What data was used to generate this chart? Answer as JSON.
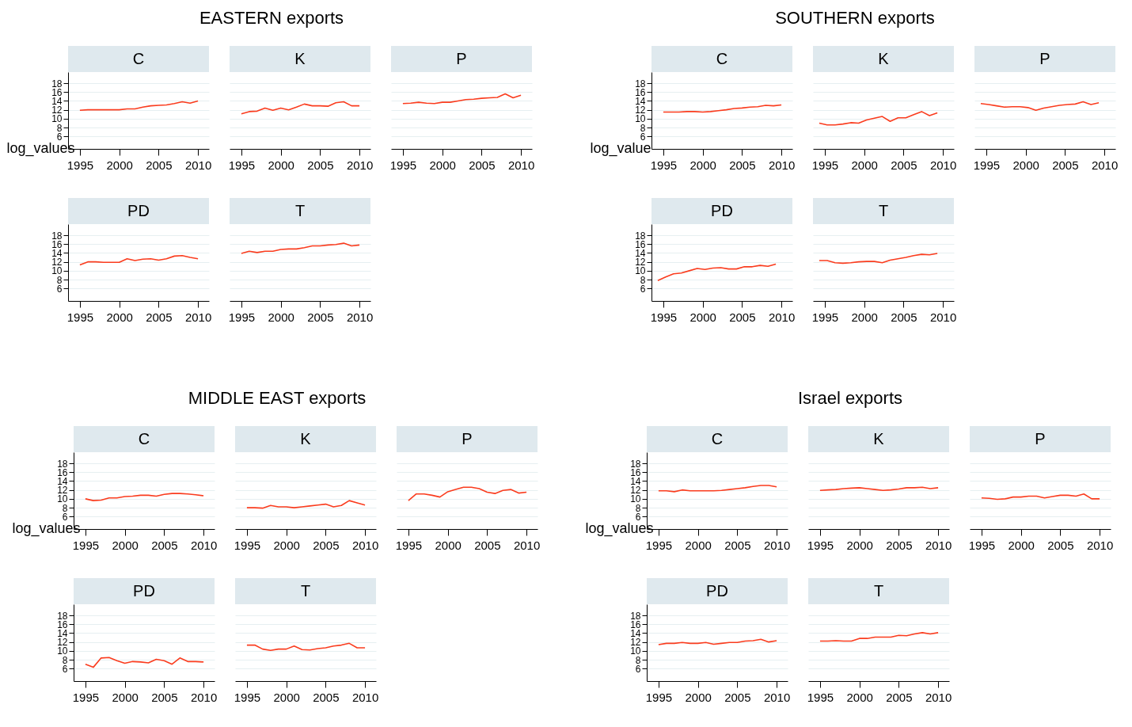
{
  "chart_data": [
    {
      "type": "line",
      "subtitle": "C",
      "ylabel": "log_values",
      "x": [
        1995,
        1996,
        1997,
        1998,
        1999,
        2000,
        2001,
        2002,
        2003,
        2004,
        2005,
        2006,
        2007,
        2008,
        2009,
        2010
      ],
      "values": [
        11.9,
        12.0,
        12.0,
        12.0,
        12.0,
        12.0,
        12.2,
        12.2,
        12.6,
        12.9,
        13.0,
        13.1,
        13.4,
        13.8,
        13.5,
        14.0
      ],
      "color": "#fa3c1e",
      "xlim": [
        1993.5,
        2011.4
      ],
      "ylim": [
        3.2,
        20.5
      ],
      "xticks": [
        1995,
        2000,
        2005,
        2010
      ],
      "yticks": [
        6,
        8,
        10,
        12,
        14,
        16,
        18
      ],
      "grid": "y"
    },
    {
      "type": "line",
      "title": "EASTERN exports",
      "subtitle": "K",
      "x": [
        1995,
        1996,
        1997,
        1998,
        1999,
        2000,
        2001,
        2002,
        2003,
        2004,
        2005,
        2006,
        2007,
        2008,
        2009,
        2010
      ],
      "values": [
        11.1,
        11.6,
        11.7,
        12.4,
        11.9,
        12.4,
        12.0,
        12.6,
        13.3,
        12.9,
        12.9,
        12.8,
        13.6,
        13.8,
        12.9,
        12.9
      ],
      "color": "#fa3c1e",
      "xlim": [
        1993.5,
        2011.4
      ],
      "xticks": [
        1995,
        2000,
        2005,
        2010
      ],
      "yticks": [
        6,
        8,
        10,
        12,
        14,
        16,
        18
      ],
      "grid": "y",
      "tick_labels": "x"
    },
    {
      "type": "line",
      "subtitle": "P",
      "x": [
        1995,
        1996,
        1997,
        1998,
        1999,
        2000,
        2001,
        2002,
        2003,
        2004,
        2005,
        2006,
        2007,
        2008,
        2009,
        2010
      ],
      "values": [
        13.4,
        13.5,
        13.7,
        13.5,
        13.4,
        13.7,
        13.7,
        14.0,
        14.3,
        14.4,
        14.6,
        14.7,
        14.8,
        15.6,
        14.7,
        15.3
      ],
      "color": "#fa3c1e",
      "xlim": [
        1993.5,
        2011.4
      ],
      "xticks": [
        1995,
        2000,
        2005,
        2010
      ],
      "yticks": [
        6,
        8,
        10,
        12,
        14,
        16,
        18
      ],
      "grid": "y",
      "tick_labels": "x"
    },
    {
      "type": "line",
      "subtitle": "PD",
      "x": [
        1995,
        1996,
        1997,
        1998,
        1999,
        2000,
        2001,
        2002,
        2003,
        2004,
        2005,
        2006,
        2007,
        2008,
        2009,
        2010
      ],
      "values": [
        11.3,
        12.0,
        12.0,
        11.9,
        11.9,
        11.9,
        12.7,
        12.3,
        12.6,
        12.7,
        12.4,
        12.7,
        13.3,
        13.4,
        13.0,
        12.7
      ],
      "color": "#fa3c1e",
      "xlim": [
        1993.5,
        2011.4
      ],
      "ylim": [
        3.2,
        20.5
      ],
      "xticks": [
        1995,
        2000,
        2005,
        2010
      ],
      "yticks": [
        6,
        8,
        10,
        12,
        14,
        16,
        18
      ],
      "grid": "y"
    },
    {
      "type": "line",
      "subtitle": "T",
      "x": [
        1995,
        1996,
        1997,
        1998,
        1999,
        2000,
        2001,
        2002,
        2003,
        2004,
        2005,
        2006,
        2007,
        2008,
        2009,
        2010
      ],
      "values": [
        13.9,
        14.4,
        14.1,
        14.4,
        14.4,
        14.8,
        14.9,
        14.9,
        15.2,
        15.6,
        15.6,
        15.8,
        15.9,
        16.2,
        15.6,
        15.8
      ],
      "color": "#fa3c1e",
      "xlim": [
        1993.5,
        2011.4
      ],
      "xticks": [
        1995,
        2000,
        2005,
        2010
      ],
      "yticks": [
        6,
        8,
        10,
        12,
        14,
        16,
        18
      ],
      "grid": "y",
      "tick_labels": "x"
    },
    {
      "type": "line",
      "subtitle": "C",
      "ylabel": "log_value",
      "x": [
        1995,
        1996,
        1997,
        1998,
        1999,
        2000,
        2001,
        2002,
        2003,
        2004,
        2005,
        2006,
        2007,
        2008,
        2009,
        2010
      ],
      "values": [
        11.5,
        11.5,
        11.5,
        11.6,
        11.6,
        11.5,
        11.6,
        11.8,
        12.0,
        12.3,
        12.4,
        12.6,
        12.7,
        13.0,
        12.9,
        13.1
      ],
      "color": "#fa3c1e",
      "xlim": [
        1993.5,
        2011.4
      ],
      "ylim": [
        3.2,
        20.5
      ],
      "xticks": [
        1995,
        2000,
        2005,
        2010
      ],
      "yticks": [
        6,
        8,
        10,
        12,
        14,
        16,
        18
      ],
      "grid": "y"
    },
    {
      "type": "line",
      "title": "SOUTHERN exports",
      "subtitle": "K",
      "x": [
        1994.3,
        1995.3,
        1996.3,
        1997.3,
        1998.3,
        1999.3,
        2000.3,
        2001.3,
        2002.3,
        2003.3,
        2004.3,
        2005.3,
        2006.3,
        2007.3,
        2008.3,
        2009.3
      ],
      "values": [
        9.0,
        8.6,
        8.6,
        8.8,
        9.1,
        9.0,
        9.7,
        10.1,
        10.5,
        9.4,
        10.2,
        10.2,
        10.9,
        11.6,
        10.7,
        11.3
      ],
      "color": "#fa3c1e",
      "xlim": [
        1993.5,
        2011.4
      ],
      "xticks": [
        1995,
        2000,
        2005,
        2010
      ],
      "yticks": [
        6,
        8,
        10,
        12,
        14,
        16,
        18
      ],
      "grid": "y",
      "tick_labels": "x"
    },
    {
      "type": "line",
      "subtitle": "P",
      "x": [
        1994.3,
        1995.3,
        1996.3,
        1997.3,
        1998.3,
        1999.3,
        2000.3,
        2001.3,
        2002.3,
        2003.3,
        2004.3,
        2005.3,
        2006.3,
        2007.3,
        2008.3,
        2009.3
      ],
      "values": [
        13.4,
        13.2,
        12.9,
        12.6,
        12.7,
        12.7,
        12.5,
        11.9,
        12.4,
        12.7,
        13.0,
        13.2,
        13.3,
        13.8,
        13.2,
        13.6
      ],
      "color": "#fa3c1e",
      "xlim": [
        1993.5,
        2011.4
      ],
      "xticks": [
        1995,
        2000,
        2005,
        2010
      ],
      "yticks": [
        6,
        8,
        10,
        12,
        14,
        16,
        18
      ],
      "grid": "y",
      "tick_labels": "x"
    },
    {
      "type": "line",
      "subtitle": "PD",
      "x": [
        1994.3,
        1995.3,
        1996.3,
        1997.3,
        1998.3,
        1999.3,
        2000.3,
        2001.3,
        2002.3,
        2003.3,
        2004.3,
        2005.3,
        2006.3,
        2007.3,
        2008.3,
        2009.3
      ],
      "values": [
        7.8,
        8.6,
        9.3,
        9.5,
        10.0,
        10.5,
        10.3,
        10.6,
        10.7,
        10.4,
        10.4,
        10.9,
        10.9,
        11.2,
        11.0,
        11.5
      ],
      "color": "#fa3c1e",
      "xlim": [
        1993.5,
        2011.4
      ],
      "ylim": [
        3.2,
        20.5
      ],
      "xticks": [
        1995,
        2000,
        2005,
        2010
      ],
      "yticks": [
        6,
        8,
        10,
        12,
        14,
        16,
        18
      ],
      "grid": "y"
    },
    {
      "type": "line",
      "subtitle": "T",
      "x": [
        1994.3,
        1995.3,
        1996.3,
        1997.3,
        1998.3,
        1999.3,
        2000.3,
        2001.3,
        2002.3,
        2003.3,
        2004.3,
        2005.3,
        2006.3,
        2007.3,
        2008.3,
        2009.3
      ],
      "values": [
        12.3,
        12.3,
        11.8,
        11.7,
        11.8,
        12.0,
        12.1,
        12.1,
        11.8,
        12.4,
        12.7,
        13.0,
        13.4,
        13.7,
        13.6,
        13.9
      ],
      "color": "#fa3c1e",
      "xlim": [
        1993.5,
        2011.4
      ],
      "xticks": [
        1995,
        2000,
        2005,
        2010
      ],
      "yticks": [
        6,
        8,
        10,
        12,
        14,
        16,
        18
      ],
      "grid": "y",
      "tick_labels": "x"
    },
    {
      "type": "line",
      "subtitle": "C",
      "ylabel": "log_values",
      "x": [
        1995,
        1996,
        1997,
        1998,
        1999,
        2000,
        2001,
        2002,
        2003,
        2004,
        2005,
        2006,
        2007,
        2008,
        2009,
        2010
      ],
      "values": [
        10.0,
        9.6,
        9.7,
        10.2,
        10.2,
        10.5,
        10.6,
        10.8,
        10.8,
        10.6,
        11.0,
        11.2,
        11.2,
        11.1,
        10.9,
        10.7
      ],
      "color": "#fa3c1e",
      "xlim": [
        1993.5,
        2011.4
      ],
      "ylim": [
        3.2,
        20.5
      ],
      "xticks": [
        1995,
        2000,
        2005,
        2010
      ],
      "yticks": [
        6,
        8,
        10,
        12,
        14,
        16,
        18
      ],
      "grid": "y"
    },
    {
      "type": "line",
      "title": "MIDDLE EAST exports",
      "subtitle": "K",
      "x": [
        1995,
        1996,
        1997,
        1998,
        1999,
        2000,
        2001,
        2002,
        2003,
        2004,
        2005,
        2006,
        2007,
        2008,
        2009,
        2010
      ],
      "values": [
        8.0,
        8.0,
        7.9,
        8.5,
        8.2,
        8.2,
        8.0,
        8.2,
        8.4,
        8.6,
        8.8,
        8.2,
        8.5,
        9.6,
        9.1,
        8.6
      ],
      "color": "#fa3c1e",
      "xlim": [
        1993.5,
        2011.4
      ],
      "xticks": [
        1995,
        2000,
        2005,
        2010
      ],
      "yticks": [
        6,
        8,
        10,
        12,
        14,
        16,
        18
      ],
      "grid": "y",
      "tick_labels": "x"
    },
    {
      "type": "line",
      "subtitle": "P",
      "x": [
        1995,
        1996,
        1997,
        1998,
        1999,
        2000,
        2001,
        2002,
        2003,
        2004,
        2005,
        2006,
        2007,
        2008,
        2009,
        2010
      ],
      "values": [
        9.6,
        11.1,
        11.1,
        10.8,
        10.4,
        11.6,
        12.1,
        12.6,
        12.6,
        12.3,
        11.5,
        11.2,
        11.9,
        12.1,
        11.3,
        11.5
      ],
      "color": "#fa3c1e",
      "xlim": [
        1993.5,
        2011.4
      ],
      "xticks": [
        1995,
        2000,
        2005,
        2010
      ],
      "yticks": [
        6,
        8,
        10,
        12,
        14,
        16,
        18
      ],
      "grid": "y",
      "tick_labels": "x"
    },
    {
      "type": "line",
      "subtitle": "PD",
      "x": [
        1995,
        1996,
        1997,
        1998,
        1999,
        2000,
        2001,
        2002,
        2003,
        2004,
        2005,
        2006,
        2007,
        2008,
        2009,
        2010
      ],
      "values": [
        7.0,
        6.3,
        8.4,
        8.5,
        7.8,
        7.2,
        7.6,
        7.5,
        7.3,
        8.1,
        7.8,
        7.0,
        8.4,
        7.6,
        7.6,
        7.5
      ],
      "color": "#fa3c1e",
      "xlim": [
        1993.5,
        2011.4
      ],
      "ylim": [
        3.2,
        20.5
      ],
      "xticks": [
        1995,
        2000,
        2005,
        2010
      ],
      "yticks": [
        6,
        8,
        10,
        12,
        14,
        16,
        18
      ],
      "grid": "y"
    },
    {
      "type": "line",
      "subtitle": "T",
      "x": [
        1995,
        1996,
        1997,
        1998,
        1999,
        2000,
        2001,
        2002,
        2003,
        2004,
        2005,
        2006,
        2007,
        2008,
        2009,
        2010
      ],
      "values": [
        11.3,
        11.3,
        10.4,
        10.1,
        10.4,
        10.4,
        11.1,
        10.3,
        10.2,
        10.5,
        10.7,
        11.1,
        11.3,
        11.7,
        10.7,
        10.7
      ],
      "color": "#fa3c1e",
      "xlim": [
        1993.5,
        2011.4
      ],
      "xticks": [
        1995,
        2000,
        2005,
        2010
      ],
      "yticks": [
        6,
        8,
        10,
        12,
        14,
        16,
        18
      ],
      "grid": "y",
      "tick_labels": "x"
    },
    {
      "type": "line",
      "subtitle": "C",
      "ylabel": "log_values",
      "x": [
        1995,
        1996,
        1997,
        1998,
        1999,
        2000,
        2001,
        2002,
        2003,
        2004,
        2005,
        2006,
        2007,
        2008,
        2009,
        2010
      ],
      "values": [
        11.8,
        11.8,
        11.6,
        12.0,
        11.8,
        11.8,
        11.8,
        11.8,
        11.9,
        12.1,
        12.3,
        12.5,
        12.8,
        13.0,
        13.0,
        12.7
      ],
      "color": "#fa3c1e",
      "xlim": [
        1993.5,
        2011.4
      ],
      "ylim": [
        3.2,
        20.5
      ],
      "xticks": [
        1995,
        2000,
        2005,
        2010
      ],
      "yticks": [
        6,
        8,
        10,
        12,
        14,
        16,
        18
      ],
      "grid": "y"
    },
    {
      "type": "line",
      "title": "Israel exports",
      "subtitle": "K",
      "x": [
        1995,
        1996,
        1997,
        1998,
        1999,
        2000,
        2001,
        2002,
        2003,
        2004,
        2005,
        2006,
        2007,
        2008,
        2009,
        2010
      ],
      "values": [
        11.9,
        12.0,
        12.1,
        12.3,
        12.4,
        12.5,
        12.3,
        12.1,
        11.9,
        12.0,
        12.2,
        12.5,
        12.5,
        12.6,
        12.3,
        12.5
      ],
      "color": "#fa3c1e",
      "xlim": [
        1993.5,
        2011.4
      ],
      "xticks": [
        1995,
        2000,
        2005,
        2010
      ],
      "yticks": [
        6,
        8,
        10,
        12,
        14,
        16,
        18
      ],
      "grid": "y",
      "tick_labels": "x"
    },
    {
      "type": "line",
      "subtitle": "P",
      "x": [
        1995,
        1996,
        1997,
        1998,
        1999,
        2000,
        2001,
        2002,
        2003,
        2004,
        2005,
        2006,
        2007,
        2008,
        2009,
        2010
      ],
      "values": [
        10.2,
        10.1,
        9.9,
        10.0,
        10.4,
        10.4,
        10.6,
        10.6,
        10.2,
        10.5,
        10.8,
        10.8,
        10.6,
        11.1,
        10.0,
        10.0
      ],
      "color": "#fa3c1e",
      "xlim": [
        1993.5,
        2011.4
      ],
      "xticks": [
        1995,
        2000,
        2005,
        2010
      ],
      "yticks": [
        6,
        8,
        10,
        12,
        14,
        16,
        18
      ],
      "grid": "y",
      "tick_labels": "x"
    },
    {
      "type": "line",
      "subtitle": "PD",
      "x": [
        1995,
        1996,
        1997,
        1998,
        1999,
        2000,
        2001,
        2002,
        2003,
        2004,
        2005,
        2006,
        2007,
        2008,
        2009,
        2010
      ],
      "values": [
        11.4,
        11.7,
        11.7,
        11.9,
        11.7,
        11.7,
        11.9,
        11.5,
        11.7,
        11.9,
        11.9,
        12.2,
        12.3,
        12.6,
        12.0,
        12.3
      ],
      "color": "#fa3c1e",
      "xlim": [
        1993.5,
        2011.4
      ],
      "ylim": [
        3.2,
        20.5
      ],
      "xticks": [
        1995,
        2000,
        2005,
        2010
      ],
      "yticks": [
        6,
        8,
        10,
        12,
        14,
        16,
        18
      ],
      "grid": "y"
    },
    {
      "type": "line",
      "subtitle": "T",
      "x": [
        1995,
        1996,
        1997,
        1998,
        1999,
        2000,
        2001,
        2002,
        2003,
        2004,
        2005,
        2006,
        2007,
        2008,
        2009,
        2010
      ],
      "values": [
        12.2,
        12.2,
        12.3,
        12.2,
        12.2,
        12.8,
        12.8,
        13.1,
        13.1,
        13.1,
        13.5,
        13.4,
        13.8,
        14.1,
        13.8,
        14.1
      ],
      "color": "#fa3c1e",
      "xlim": [
        1993.5,
        2011.4
      ],
      "xticks": [
        1995,
        2000,
        2005,
        2010
      ],
      "yticks": [
        6,
        8,
        10,
        12,
        14,
        16,
        18
      ],
      "grid": "y",
      "tick_labels": "x"
    }
  ]
}
